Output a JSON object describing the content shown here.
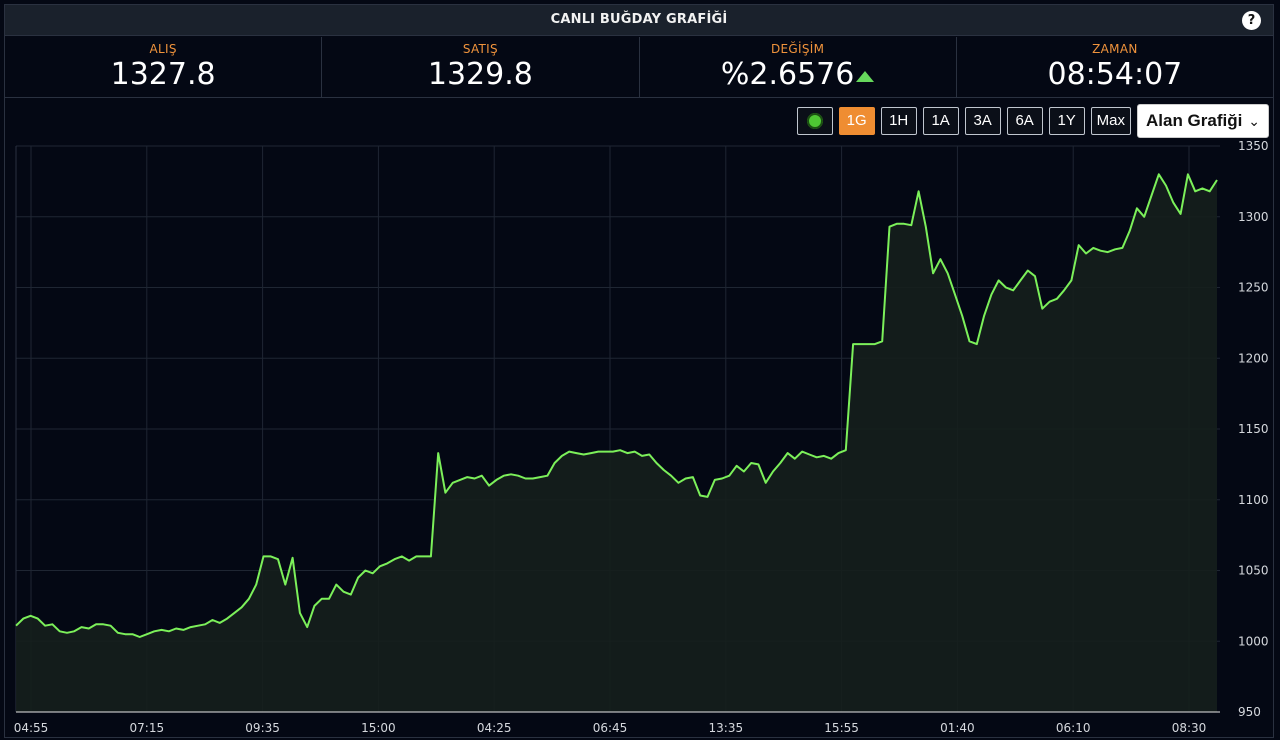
{
  "header": {
    "title": "CANLI BUĞDAY GRAFİĞİ",
    "help_label": "?"
  },
  "stats": [
    {
      "label": "ALIŞ",
      "value": "1327.8"
    },
    {
      "label": "SATIŞ",
      "value": "1329.8"
    },
    {
      "label": "DEĞİŞİM",
      "value": "%2.6576",
      "trend": "up"
    },
    {
      "label": "ZAMAN",
      "value": "08:54:07"
    }
  ],
  "toolbar": {
    "ranges": [
      {
        "label": "1G",
        "active": true
      },
      {
        "label": "1H",
        "active": false
      },
      {
        "label": "1A",
        "active": false
      },
      {
        "label": "3A",
        "active": false
      },
      {
        "label": "6A",
        "active": false
      },
      {
        "label": "1Y",
        "active": false
      },
      {
        "label": "Max",
        "active": false
      }
    ],
    "chart_type": "Alan Grafiği"
  },
  "colors": {
    "accent": "#ef8d32",
    "line": "#7cf05a",
    "up": "#66d85c",
    "background": "#040814"
  },
  "chart_data": {
    "type": "area",
    "title": "",
    "xlabel": "",
    "ylabel": "",
    "ylim": [
      950,
      1350
    ],
    "yticks": [
      950,
      1000,
      1050,
      1100,
      1150,
      1200,
      1250,
      1300,
      1350
    ],
    "xtick_labels": [
      "04:55",
      "07:15",
      "09:35",
      "15:00",
      "04:25",
      "06:45",
      "13:35",
      "15:55",
      "01:40",
      "06:10",
      "08:30"
    ],
    "grid": true,
    "series": [
      {
        "values": [
          1011,
          1016,
          1018,
          1016,
          1011,
          1012,
          1007,
          1006,
          1007,
          1010,
          1009,
          1012,
          1012,
          1011,
          1006,
          1005,
          1005,
          1003,
          1005,
          1007,
          1008,
          1007,
          1009,
          1008,
          1010,
          1011,
          1012,
          1015,
          1013,
          1016,
          1020,
          1024,
          1030,
          1040,
          1060,
          1060,
          1058,
          1040,
          1059,
          1020,
          1010,
          1025,
          1030,
          1030,
          1040,
          1035,
          1033,
          1045,
          1050,
          1048,
          1053,
          1055,
          1058,
          1060,
          1057,
          1060,
          1060,
          1060,
          1133,
          1105,
          1112,
          1114,
          1116,
          1115,
          1117,
          1110,
          1114,
          1117,
          1118,
          1117,
          1115,
          1115,
          1116,
          1117,
          1126,
          1131,
          1134,
          1133,
          1132,
          1133,
          1134,
          1134,
          1134,
          1135,
          1133,
          1134,
          1131,
          1132,
          1126,
          1121,
          1117,
          1112,
          1115,
          1116,
          1103,
          1102,
          1114,
          1115,
          1117,
          1124,
          1120,
          1126,
          1125,
          1112,
          1120,
          1126,
          1133,
          1129,
          1134,
          1132,
          1130,
          1131,
          1129,
          1133,
          1135,
          1210,
          1210,
          1210,
          1210,
          1212,
          1293,
          1295,
          1295,
          1294,
          1318,
          1293,
          1260,
          1270,
          1260,
          1245,
          1230,
          1212,
          1210,
          1230,
          1245,
          1255,
          1250,
          1248,
          1255,
          1262,
          1258,
          1235,
          1240,
          1242,
          1248,
          1255,
          1280,
          1274,
          1278,
          1276,
          1275,
          1277,
          1278,
          1290,
          1306,
          1300,
          1315,
          1330,
          1322,
          1310,
          1302,
          1330,
          1318,
          1320,
          1318,
          1326
        ]
      }
    ]
  }
}
